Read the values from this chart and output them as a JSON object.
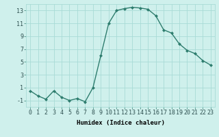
{
  "x": [
    0,
    1,
    2,
    3,
    4,
    5,
    6,
    7,
    8,
    9,
    10,
    11,
    12,
    13,
    14,
    15,
    16,
    17,
    18,
    19,
    20,
    21,
    22,
    23
  ],
  "y": [
    0.5,
    -0.3,
    -0.8,
    0.5,
    -0.5,
    -1.0,
    -0.7,
    -1.2,
    1.0,
    6.0,
    11.0,
    13.0,
    13.3,
    13.5,
    13.4,
    13.2,
    12.2,
    10.0,
    9.5,
    7.8,
    6.8,
    6.3,
    5.2,
    4.5
  ],
  "line_color": "#2e7d6e",
  "marker": "D",
  "markersize": 2.0,
  "linewidth": 1.0,
  "xlabel": "Humidex (Indice chaleur)",
  "bg_color": "#cff0ec",
  "grid_color": "#a8dbd6",
  "xlim": [
    -0.5,
    23.5
  ],
  "ylim": [
    -2.0,
    14.0
  ],
  "yticks": [
    -1,
    1,
    3,
    5,
    7,
    9,
    11,
    13
  ],
  "xticks": [
    0,
    1,
    2,
    3,
    4,
    5,
    6,
    7,
    8,
    9,
    10,
    11,
    12,
    13,
    14,
    15,
    16,
    17,
    18,
    19,
    20,
    21,
    22,
    23
  ],
  "xlabel_fontsize": 6.5,
  "tick_fontsize": 6.0
}
